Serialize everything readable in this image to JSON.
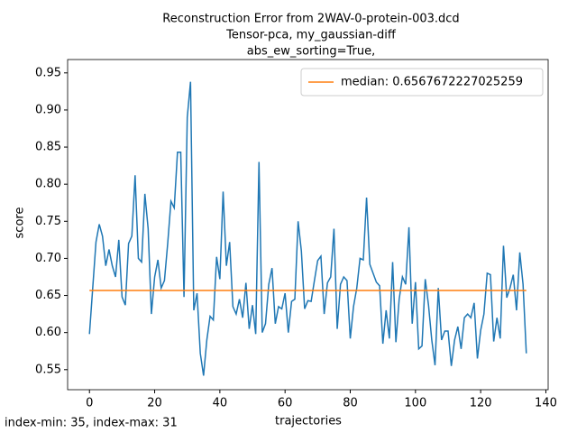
{
  "chart_data": {
    "type": "line",
    "title": [
      "Reconstruction Error from 2WAV-0-protein-003.dcd",
      "Tensor-pca, my_gaussian-diff",
      "abs_ew_sorting=True,"
    ],
    "x_label": "trajectories",
    "y_label": "score",
    "annotation": "index-min: 35, index-max: 31",
    "x": [
      0,
      1,
      2,
      3,
      4,
      5,
      6,
      7,
      8,
      9,
      10,
      11,
      12,
      13,
      14,
      15,
      16,
      17,
      18,
      19,
      20,
      21,
      22,
      23,
      24,
      25,
      26,
      27,
      28,
      29,
      30,
      31,
      32,
      33,
      34,
      35,
      36,
      37,
      38,
      39,
      40,
      41,
      42,
      43,
      44,
      45,
      46,
      47,
      48,
      49,
      50,
      51,
      52,
      53,
      54,
      55,
      56,
      57,
      58,
      59,
      60,
      61,
      62,
      63,
      64,
      65,
      66,
      67,
      68,
      69,
      70,
      71,
      72,
      73,
      74,
      75,
      76,
      77,
      78,
      79,
      80,
      81,
      82,
      83,
      84,
      85,
      86,
      87,
      88,
      89,
      90,
      91,
      92,
      93,
      94,
      95,
      96,
      97,
      98,
      99,
      100,
      101,
      102,
      103,
      104,
      105,
      106,
      107,
      108,
      109,
      110,
      111,
      112,
      113,
      114,
      115,
      116,
      117,
      118,
      119,
      120,
      121,
      122,
      123,
      124,
      125,
      126,
      127,
      128,
      129,
      130,
      131,
      132,
      133,
      134
    ],
    "series": [
      {
        "color": "#1f77b4",
        "values": [
          0.598,
          0.66,
          0.722,
          0.746,
          0.73,
          0.69,
          0.712,
          0.69,
          0.675,
          0.725,
          0.648,
          0.637,
          0.72,
          0.73,
          0.812,
          0.7,
          0.695,
          0.787,
          0.74,
          0.625,
          0.675,
          0.698,
          0.66,
          0.67,
          0.72,
          0.777,
          0.768,
          0.843,
          0.843,
          0.648,
          0.89,
          0.938,
          0.63,
          0.653,
          0.572,
          0.542,
          0.59,
          0.622,
          0.617,
          0.702,
          0.672,
          0.79,
          0.69,
          0.722,
          0.635,
          0.625,
          0.645,
          0.62,
          0.667,
          0.605,
          0.637,
          0.598,
          0.83,
          0.6,
          0.612,
          0.665,
          0.687,
          0.612,
          0.635,
          0.632,
          0.653,
          0.6,
          0.642,
          0.645,
          0.75,
          0.71,
          0.632,
          0.643,
          0.642,
          0.67,
          0.697,
          0.703,
          0.625,
          0.667,
          0.675,
          0.74,
          0.605,
          0.665,
          0.675,
          0.67,
          0.592,
          0.635,
          0.66,
          0.7,
          0.698,
          0.782,
          0.692,
          0.68,
          0.668,
          0.663,
          0.585,
          0.63,
          0.592,
          0.695,
          0.587,
          0.645,
          0.675,
          0.665,
          0.742,
          0.612,
          0.668,
          0.578,
          0.582,
          0.672,
          0.637,
          0.59,
          0.556,
          0.66,
          0.59,
          0.602,
          0.602,
          0.555,
          0.59,
          0.608,
          0.578,
          0.62,
          0.625,
          0.62,
          0.64,
          0.565,
          0.603,
          0.625,
          0.68,
          0.678,
          0.588,
          0.62,
          0.592,
          0.717,
          0.647,
          0.66,
          0.678,
          0.63,
          0.708,
          0.665,
          0.572
        ]
      },
      {
        "name": "median: 0.6567672227025259",
        "color": "#ff7f0e",
        "x": [
          0,
          134
        ],
        "values": [
          0.6567672227025259,
          0.6567672227025259
        ]
      }
    ],
    "xlim": [
      -6.7,
      140.7
    ],
    "ylim": [
      0.523,
      0.968
    ],
    "xticks": [
      0,
      20,
      40,
      60,
      80,
      100,
      120,
      140
    ],
    "yticks": [
      0.55,
      {
        "value": 0.6,
        "label": "0.60"
      },
      0.65,
      {
        "value": 0.7,
        "label": "0.70"
      },
      0.75,
      {
        "value": 0.8,
        "label": "0.80"
      },
      0.85,
      {
        "value": 0.9,
        "label": "0.90"
      },
      0.95
    ],
    "legend": "upper right"
  }
}
